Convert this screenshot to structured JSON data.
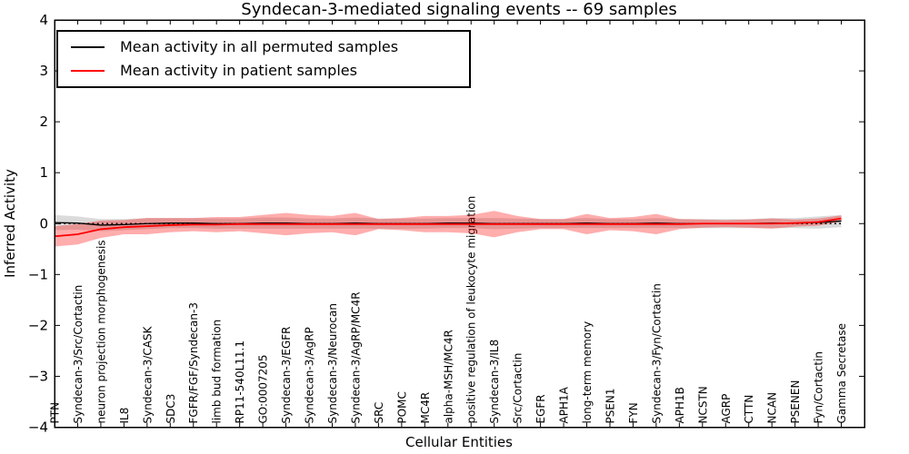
{
  "figure": {
    "window_title": "Syndecan-3-mediated signaling events -- 69 samples"
  },
  "legend": {
    "entries": [
      {
        "label": "Mean activity in all permuted samples",
        "color": "#000000"
      },
      {
        "label": "Mean activity in patient samples",
        "color": "#ff0000"
      }
    ],
    "position": "upper left"
  },
  "chart_data": {
    "type": "line",
    "title": "Syndecan-3-mediated signaling events -- 69 samples",
    "xlabel": "Cellular Entities",
    "ylabel": "Inferred Activity",
    "ylim": [
      -4,
      4
    ],
    "xlim": [
      0,
      35
    ],
    "yticks": [
      "4",
      "3",
      "2",
      "1",
      "0",
      "−1",
      "−2",
      "−3",
      "−4"
    ],
    "ytick_values": [
      4,
      3,
      2,
      1,
      0,
      -1,
      -2,
      -3,
      -4
    ],
    "x_tick_rotation": 90,
    "grid": false,
    "legend_position": "upper left",
    "zero_line": {
      "y": 0,
      "style": "dotted",
      "color": "#000000"
    },
    "categories": [
      "PTN",
      "Syndecan-3/Src/Cortactin",
      "neuron projection morphogenesis",
      "IL8",
      "Syndecan-3/CASK",
      "SDC3",
      "FGFR/FGF/Syndecan-3",
      "limb bud formation",
      "RP11-540L11.1",
      "GO:0007205",
      "Syndecan-3/EGFR",
      "Syndecan-3/AgRP",
      "Syndecan-3/Neurocan",
      "Syndecan-3/AgRP/MC4R",
      "SRC",
      "POMC",
      "MC4R",
      "alpha-MSH/MC4R",
      "positive regulation of leukocyte migration",
      "Syndecan-3/IL8",
      "Src/Cortactin",
      "EGFR",
      "APH1A",
      "long-term memory",
      "PSEN1",
      "FYN",
      "Syndecan-3/Fyn/Cortactin",
      "APH1B",
      "NCSTN",
      "AGRP",
      "CTTN",
      "NCAN",
      "PSENEN",
      "Fyn/Cortactin",
      "Gamma Secretase"
    ],
    "series": [
      {
        "name": "Mean activity in all permuted samples",
        "color": "#000000",
        "band_color": "rgba(0,0,0,0.14)",
        "values": [
          0.02,
          0.01,
          -0.03,
          -0.02,
          0.0,
          0.01,
          0.01,
          0.0,
          0.0,
          0.01,
          0.01,
          0.0,
          0.0,
          0.01,
          0.0,
          0.0,
          0.0,
          0.01,
          0.01,
          0.0,
          0.0,
          0.0,
          0.0,
          0.01,
          0.0,
          0.0,
          0.01,
          0.0,
          0.0,
          0.0,
          0.0,
          0.01,
          0.01,
          0.02,
          0.05
        ],
        "band_halfwidth": [
          0.15,
          0.13,
          0.12,
          0.11,
          0.11,
          0.1,
          0.1,
          0.1,
          0.1,
          0.11,
          0.11,
          0.1,
          0.1,
          0.11,
          0.1,
          0.1,
          0.1,
          0.1,
          0.1,
          0.11,
          0.1,
          0.09,
          0.09,
          0.1,
          0.09,
          0.09,
          0.1,
          0.09,
          0.09,
          0.09,
          0.09,
          0.1,
          0.1,
          0.12,
          0.12
        ]
      },
      {
        "name": "Mean activity in patient samples",
        "color": "#ff0000",
        "band_color": "rgba(255,0,0,0.32)",
        "values": [
          -0.25,
          -0.21,
          -0.11,
          -0.07,
          -0.05,
          -0.03,
          -0.02,
          -0.02,
          -0.01,
          -0.01,
          -0.01,
          -0.01,
          -0.01,
          -0.01,
          -0.01,
          -0.01,
          -0.01,
          -0.01,
          -0.01,
          -0.01,
          -0.01,
          -0.01,
          -0.01,
          -0.01,
          -0.01,
          -0.01,
          -0.01,
          -0.01,
          0.0,
          0.0,
          0.0,
          0.0,
          0.01,
          0.03,
          0.1
        ],
        "band_halfwidth": [
          0.2,
          0.2,
          0.17,
          0.14,
          0.16,
          0.14,
          0.13,
          0.15,
          0.14,
          0.18,
          0.22,
          0.18,
          0.16,
          0.22,
          0.1,
          0.12,
          0.16,
          0.16,
          0.18,
          0.26,
          0.16,
          0.1,
          0.1,
          0.2,
          0.12,
          0.14,
          0.2,
          0.1,
          0.08,
          0.07,
          0.08,
          0.1,
          0.07,
          0.07,
          0.06
        ]
      }
    ]
  }
}
